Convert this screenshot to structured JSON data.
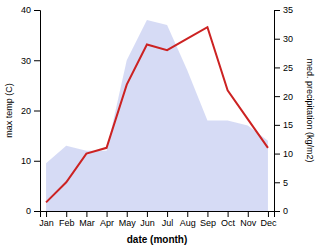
{
  "chart_data": {
    "type": "area",
    "xlabel": "date (month)",
    "ylabel": "max temp (C)",
    "y2label": "med. precipitation (kg/m2)",
    "categories": [
      "Jan",
      "Feb",
      "Mar",
      "Apr",
      "May",
      "Jun",
      "Jul",
      "Aug",
      "Sep",
      "Oct",
      "Nov",
      "Dec"
    ],
    "series": [
      {
        "type": "area",
        "color": "#c0c8f0",
        "values": [
          9.5,
          13,
          12,
          12,
          30,
          38,
          37,
          28,
          18,
          18,
          17,
          14
        ]
      },
      {
        "type": "line",
        "color": "#cc2222",
        "axis": "y2",
        "values": [
          1.5,
          5,
          10,
          11,
          22,
          29,
          28,
          30,
          32,
          21,
          16,
          11
        ]
      }
    ],
    "ylim": [
      0,
      40
    ],
    "yticks": [
      0,
      10,
      20,
      30,
      40
    ],
    "y2lim": [
      0,
      35
    ],
    "y2ticks": [
      0,
      5,
      10,
      15,
      20,
      25,
      30,
      35
    ],
    "grid": false
  }
}
